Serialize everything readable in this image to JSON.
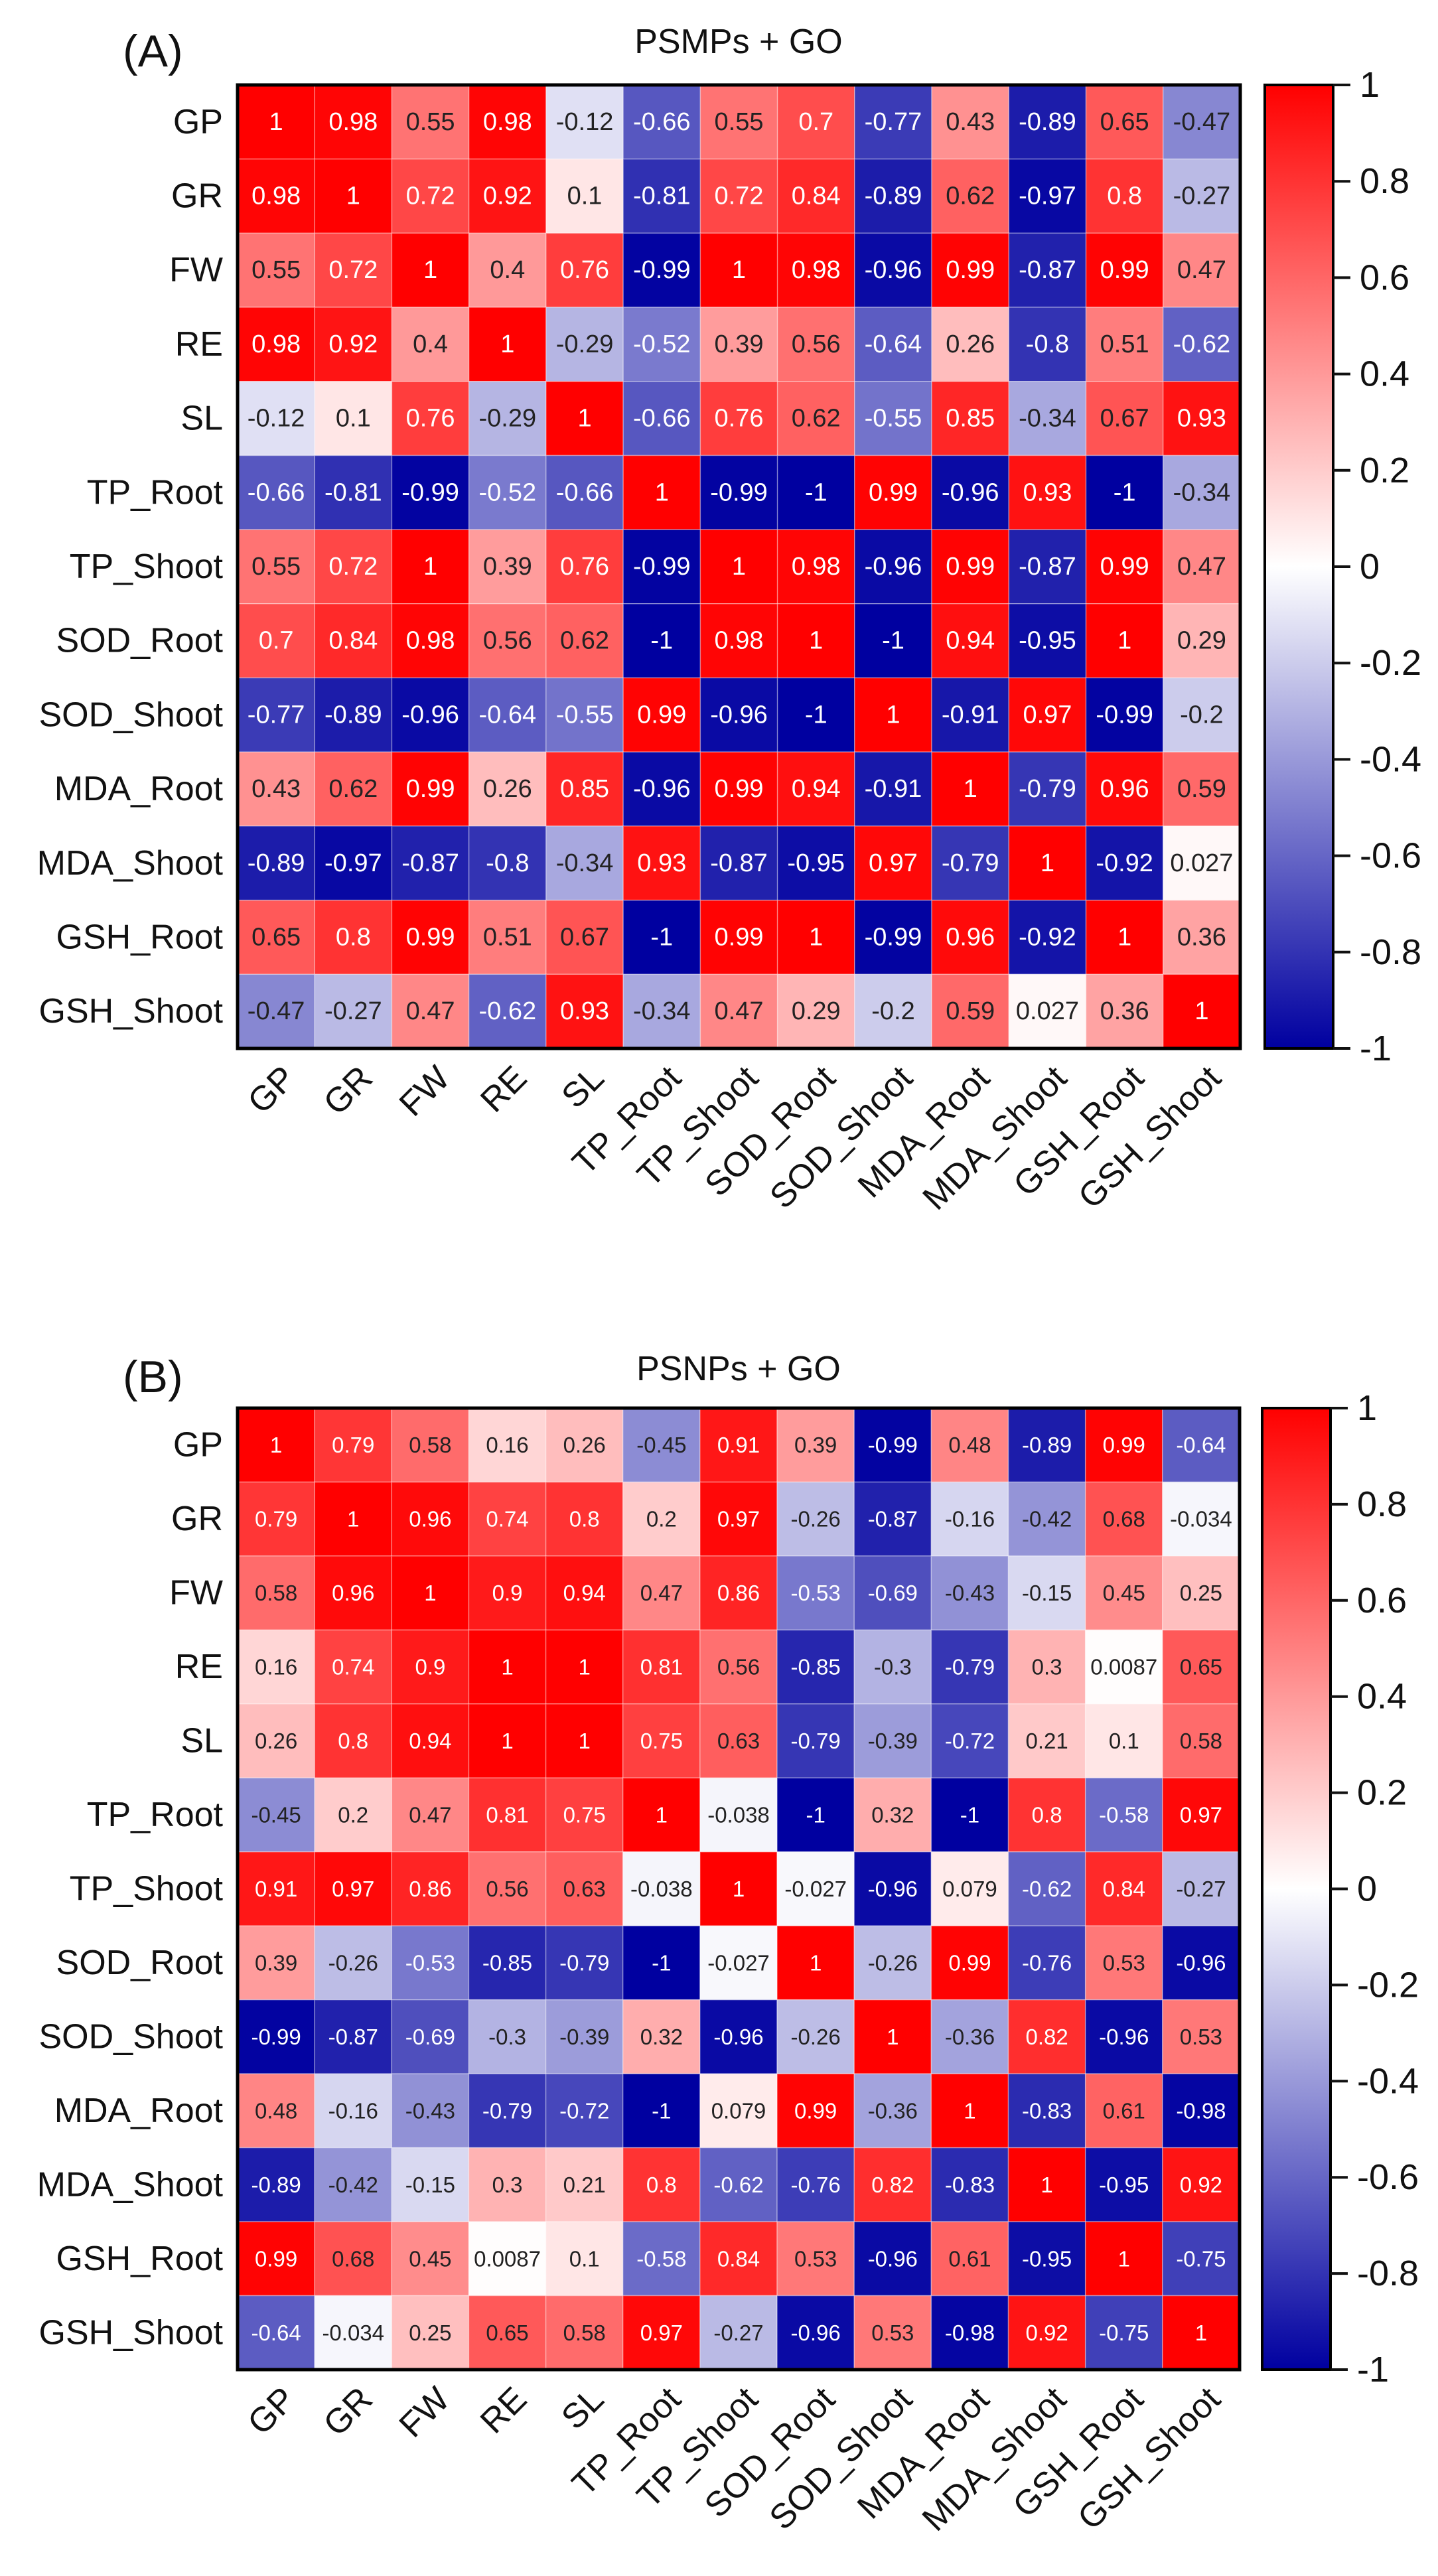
{
  "chart_data": [
    {
      "type": "heatmap",
      "panel_label": "(A)",
      "title": "PSMPs + GO",
      "variables": [
        "GP",
        "GR",
        "FW",
        "RE",
        "SL",
        "TP_Root",
        "TP_Shoot",
        "SOD_Root",
        "SOD_Shoot",
        "MDA_Root",
        "MDA_Shoot",
        "GSH_Root",
        "GSH_Shoot"
      ],
      "values": [
        [
          1,
          0.98,
          0.55,
          0.98,
          -0.12,
          -0.66,
          0.55,
          0.7,
          -0.77,
          0.43,
          -0.89,
          0.65,
          -0.47
        ],
        [
          0.98,
          1,
          0.72,
          0.92,
          0.1,
          -0.81,
          0.72,
          0.84,
          -0.89,
          0.62,
          -0.97,
          0.8,
          -0.27
        ],
        [
          0.55,
          0.72,
          1,
          0.4,
          0.76,
          -0.99,
          1,
          0.98,
          -0.96,
          0.99,
          -0.87,
          0.99,
          0.47
        ],
        [
          0.98,
          0.92,
          0.4,
          1,
          -0.29,
          -0.52,
          0.39,
          0.56,
          -0.64,
          0.26,
          -0.8,
          0.51,
          -0.62
        ],
        [
          -0.12,
          0.1,
          0.76,
          -0.29,
          1,
          -0.66,
          0.76,
          0.62,
          -0.55,
          0.85,
          -0.34,
          0.67,
          0.93
        ],
        [
          -0.66,
          -0.81,
          -0.99,
          -0.52,
          -0.66,
          1,
          -0.99,
          -1,
          0.99,
          -0.96,
          0.93,
          -1,
          -0.34
        ],
        [
          0.55,
          0.72,
          1,
          0.39,
          0.76,
          -0.99,
          1,
          0.98,
          -0.96,
          0.99,
          -0.87,
          0.99,
          0.47
        ],
        [
          0.7,
          0.84,
          0.98,
          0.56,
          0.62,
          -1,
          0.98,
          1,
          -1,
          0.94,
          -0.95,
          1,
          0.29
        ],
        [
          -0.77,
          -0.89,
          -0.96,
          -0.64,
          -0.55,
          0.99,
          -0.96,
          -1,
          1,
          -0.91,
          0.97,
          -0.99,
          -0.2
        ],
        [
          0.43,
          0.62,
          0.99,
          0.26,
          0.85,
          -0.96,
          0.99,
          0.94,
          -0.91,
          1,
          -0.79,
          0.96,
          0.59
        ],
        [
          -0.89,
          -0.97,
          -0.87,
          -0.8,
          -0.34,
          0.93,
          -0.87,
          -0.95,
          0.97,
          -0.79,
          1,
          -0.92,
          0.027
        ],
        [
          0.65,
          0.8,
          0.99,
          0.51,
          0.67,
          -1,
          0.99,
          1,
          -0.99,
          0.96,
          -0.92,
          1,
          0.36
        ],
        [
          -0.47,
          -0.27,
          0.47,
          -0.62,
          0.93,
          -0.34,
          0.47,
          0.29,
          -0.2,
          0.59,
          0.027,
          0.36,
          1
        ]
      ],
      "colorbar": {
        "range": [
          -1,
          1
        ],
        "ticks": [
          "1",
          "0.8",
          "0.6",
          "0.4",
          "0.2",
          "0",
          "-0.2",
          "-0.4",
          "-0.6",
          "-0.8",
          "-1"
        ],
        "low_color": "#0000a0",
        "mid_color": "#ffffff",
        "high_color": "#ff0000"
      }
    },
    {
      "type": "heatmap",
      "panel_label": "(B)",
      "title": "PSNPs + GO",
      "variables": [
        "GP",
        "GR",
        "FW",
        "RE",
        "SL",
        "TP_Root",
        "TP_Shoot",
        "SOD_Root",
        "SOD_Shoot",
        "MDA_Root",
        "MDA_Shoot",
        "GSH_Root",
        "GSH_Shoot"
      ],
      "values": [
        [
          1,
          0.79,
          0.58,
          0.16,
          0.26,
          -0.45,
          0.91,
          0.39,
          -0.99,
          0.48,
          -0.89,
          0.99,
          -0.64
        ],
        [
          0.79,
          1,
          0.96,
          0.74,
          0.8,
          0.2,
          0.97,
          -0.26,
          -0.87,
          -0.16,
          -0.42,
          0.68,
          -0.034
        ],
        [
          0.58,
          0.96,
          1,
          0.9,
          0.94,
          0.47,
          0.86,
          -0.53,
          -0.69,
          -0.43,
          -0.15,
          0.45,
          0.25
        ],
        [
          0.16,
          0.74,
          0.9,
          1,
          1,
          0.81,
          0.56,
          -0.85,
          -0.3,
          -0.79,
          0.3,
          0.0087,
          0.65
        ],
        [
          0.26,
          0.8,
          0.94,
          1,
          1,
          0.75,
          0.63,
          -0.79,
          -0.39,
          -0.72,
          0.21,
          0.1,
          0.58
        ],
        [
          -0.45,
          0.2,
          0.47,
          0.81,
          0.75,
          1,
          -0.038,
          -1,
          0.32,
          -1,
          0.8,
          -0.58,
          0.97
        ],
        [
          0.91,
          0.97,
          0.86,
          0.56,
          0.63,
          -0.038,
          1,
          -0.027,
          -0.96,
          0.079,
          -0.62,
          0.84,
          -0.27
        ],
        [
          0.39,
          -0.26,
          -0.53,
          -0.85,
          -0.79,
          -1,
          -0.027,
          1,
          -0.26,
          0.99,
          -0.76,
          0.53,
          -0.96
        ],
        [
          -0.99,
          -0.87,
          -0.69,
          -0.3,
          -0.39,
          0.32,
          -0.96,
          -0.26,
          1,
          -0.36,
          0.82,
          -0.96,
          0.53
        ],
        [
          0.48,
          -0.16,
          -0.43,
          -0.79,
          -0.72,
          -1,
          0.079,
          0.99,
          -0.36,
          1,
          -0.83,
          0.61,
          -0.98
        ],
        [
          -0.89,
          -0.42,
          -0.15,
          0.3,
          0.21,
          0.8,
          -0.62,
          -0.76,
          0.82,
          -0.83,
          1,
          -0.95,
          0.92
        ],
        [
          0.99,
          0.68,
          0.45,
          0.0087,
          0.1,
          -0.58,
          0.84,
          0.53,
          -0.96,
          0.61,
          -0.95,
          1,
          -0.75
        ],
        [
          -0.64,
          -0.034,
          0.25,
          0.65,
          0.58,
          0.97,
          -0.27,
          -0.96,
          0.53,
          -0.98,
          0.92,
          -0.75,
          1
        ]
      ],
      "colorbar": {
        "range": [
          -1,
          1
        ],
        "ticks": [
          "1",
          "0.8",
          "0.6",
          "0.4",
          "0.2",
          "0",
          "-0.2",
          "-0.4",
          "-0.6",
          "-0.8",
          "-1"
        ],
        "low_color": "#0000a0",
        "mid_color": "#ffffff",
        "high_color": "#ff0000"
      }
    }
  ]
}
